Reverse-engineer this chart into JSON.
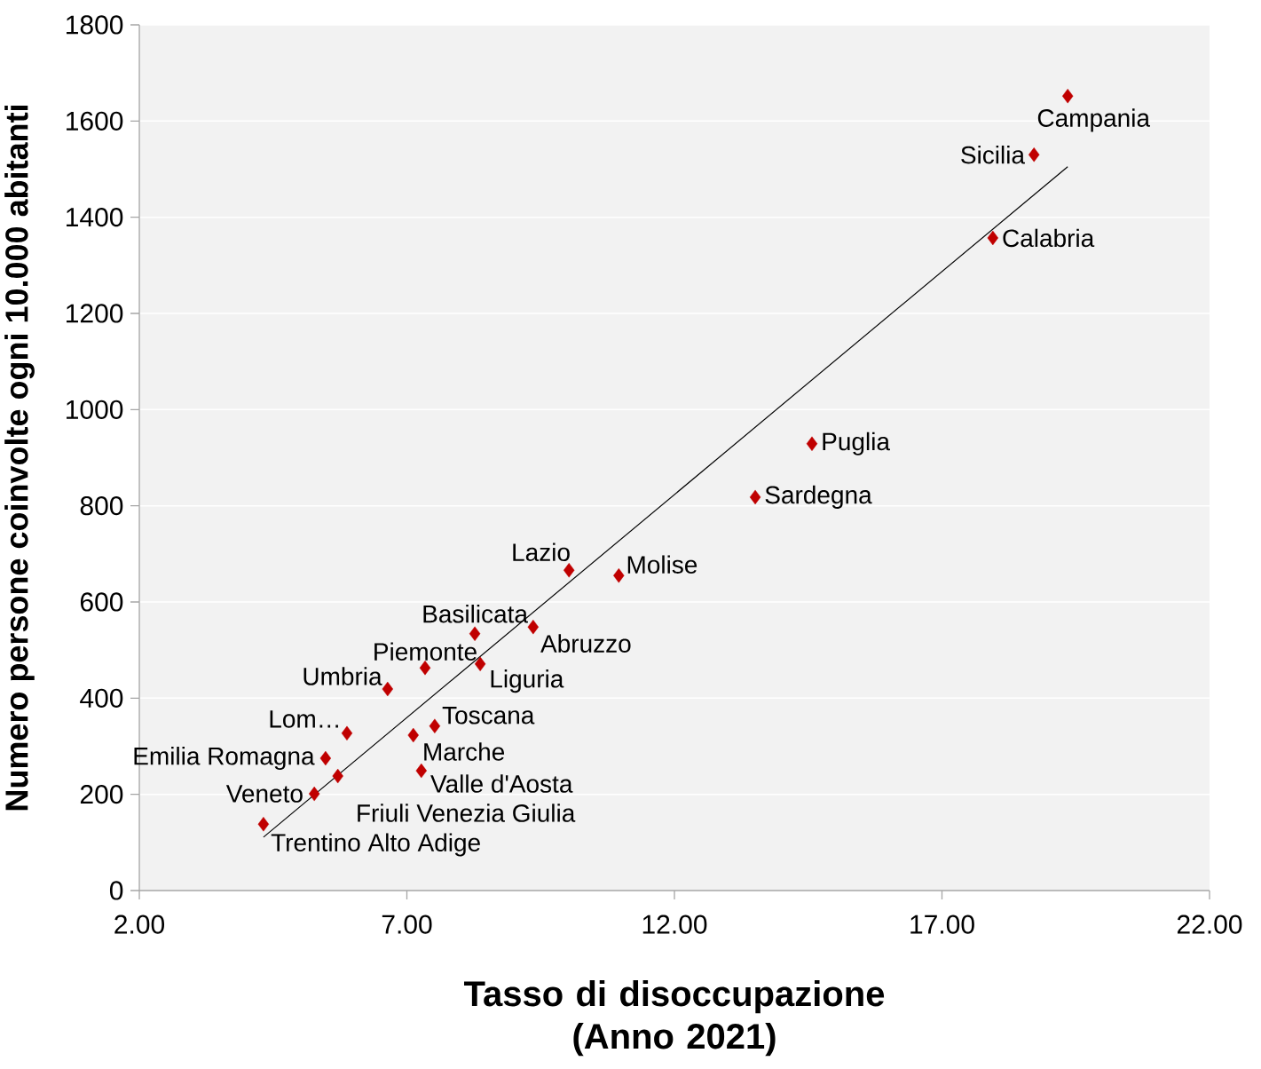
{
  "chart_data": {
    "type": "scatter",
    "xlabel": "Tasso di disoccupazione (Anno 2021)",
    "ylabel": "Numero persone coinvolte ogni 10.000 abitanti",
    "xlim": [
      2,
      22
    ],
    "ylim": [
      0,
      1800
    ],
    "xticks": [
      {
        "value": 2,
        "label": "2.00"
      },
      {
        "value": 7,
        "label": "7.00"
      },
      {
        "value": 12,
        "label": "12.00"
      },
      {
        "value": 17,
        "label": "17.00"
      },
      {
        "value": 22,
        "label": "22.00"
      }
    ],
    "yticks": [
      0,
      200,
      400,
      600,
      800,
      1000,
      1200,
      1400,
      1600,
      1800
    ],
    "grid": "y",
    "marker": "diamond",
    "series": [
      {
        "type": "scatter",
        "color": "#c00000",
        "x": [
          19.35,
          18.72,
          17.95,
          14.57,
          13.51,
          10.96,
          10.03,
          9.36,
          8.27,
          8.37,
          7.34,
          6.64,
          5.88,
          7.52,
          7.12,
          7.27,
          5.48,
          5.71,
          5.27,
          4.32
        ],
        "values": [
          1652,
          1530,
          1357,
          929,
          818,
          655,
          666,
          548,
          534,
          471,
          463,
          419,
          327,
          342,
          323,
          249,
          275,
          238,
          201,
          138
        ]
      },
      {
        "type": "line",
        "color": "#000000",
        "marker": "none",
        "x": [
          4.32,
          19.35
        ],
        "values": [
          111,
          1505
        ]
      }
    ],
    "annotations": [
      {
        "text": "Campania",
        "x": 19.35,
        "y": 1652
      },
      {
        "text": "Sicilia",
        "x": 18.72,
        "y": 1530
      },
      {
        "text": "Calabria",
        "x": 17.95,
        "y": 1357
      },
      {
        "text": "Puglia",
        "x": 14.57,
        "y": 929
      },
      {
        "text": "Sardegna",
        "x": 13.51,
        "y": 818
      },
      {
        "text": "Molise",
        "x": 10.96,
        "y": 655
      },
      {
        "text": "Lazio",
        "x": 10.03,
        "y": 666
      },
      {
        "text": "Abruzzo",
        "x": 9.36,
        "y": 548
      },
      {
        "text": "Basilicata",
        "x": 8.27,
        "y": 534
      },
      {
        "text": "Liguria",
        "x": 8.37,
        "y": 471
      },
      {
        "text": "Piemonte",
        "x": 7.34,
        "y": 463
      },
      {
        "text": "Umbria",
        "x": 6.64,
        "y": 419
      },
      {
        "text": "Lom…",
        "x": 5.88,
        "y": 327
      },
      {
        "text": "Toscana",
        "x": 7.52,
        "y": 342
      },
      {
        "text": "Marche",
        "x": 7.12,
        "y": 323
      },
      {
        "text": "Valle d'Aosta",
        "x": 7.27,
        "y": 249
      },
      {
        "text": "Emilia Romagna",
        "x": 5.48,
        "y": 275
      },
      {
        "text": "Friuli Venezia Giulia",
        "x": 5.71,
        "y": 238
      },
      {
        "text": "Veneto",
        "x": 5.27,
        "y": 201
      },
      {
        "text": "Trentino Alto Adige",
        "x": 4.32,
        "y": 138
      }
    ]
  }
}
